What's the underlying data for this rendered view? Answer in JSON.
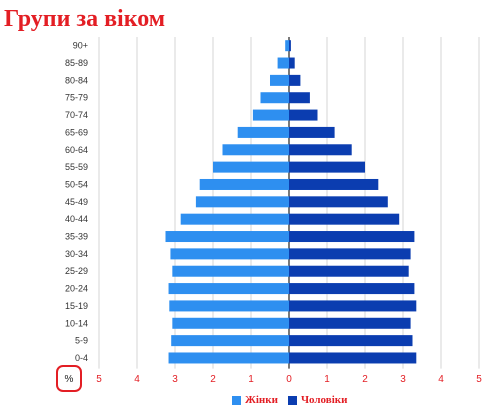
{
  "title": "Групи за віком",
  "chart_data": {
    "type": "bar",
    "orientation": "horizontal",
    "subtype": "population-pyramid",
    "categories": [
      "90+",
      "85-89",
      "80-84",
      "75-79",
      "70-74",
      "65-69",
      "60-64",
      "55-59",
      "50-54",
      "45-49",
      "40-44",
      "35-39",
      "30-34",
      "25-29",
      "20-24",
      "15-19",
      "10-14",
      "5-9",
      "0-4"
    ],
    "series": [
      {
        "name": "Жінки",
        "color": "#2e8ff0",
        "side": "left",
        "values": [
          0.1,
          0.3,
          0.5,
          0.75,
          0.95,
          1.35,
          1.75,
          2.0,
          2.35,
          2.45,
          2.85,
          3.25,
          3.12,
          3.07,
          3.17,
          3.15,
          3.07,
          3.1,
          3.17
        ]
      },
      {
        "name": "Чоловіки",
        "color": "#0b3db0",
        "side": "right",
        "values": [
          0.05,
          0.15,
          0.3,
          0.55,
          0.75,
          1.2,
          1.65,
          2.0,
          2.35,
          2.6,
          2.9,
          3.3,
          3.2,
          3.15,
          3.3,
          3.35,
          3.2,
          3.25,
          3.35
        ]
      }
    ],
    "xticks": [
      "5",
      "4",
      "3",
      "2",
      "1",
      "0",
      "1",
      "2",
      "3",
      "4",
      "5"
    ],
    "xlim": [
      -5,
      5
    ],
    "xlabel": "%",
    "grid": true,
    "legend_position": "bottom-center"
  }
}
